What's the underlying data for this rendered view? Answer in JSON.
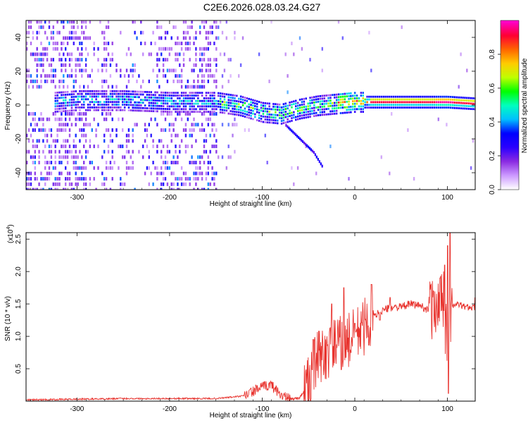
{
  "title": "C2E6.2026.028.03.24.G27",
  "colors": {
    "snr_line": "#e8322d",
    "background": "#ffffff",
    "axis": "#000000"
  },
  "chart_data": [
    {
      "type": "heatmap",
      "xlabel": "Height of straight line (km)",
      "ylabel": "Frequency (Hz)",
      "xlim": [
        -355,
        130
      ],
      "ylim": [
        -50,
        50
      ],
      "x_ticks": [
        "-300",
        "-200",
        "-100",
        "0",
        "100"
      ],
      "y_ticks": [
        "-40",
        "-20",
        "0",
        "20",
        "40"
      ],
      "colorbar": {
        "label": "Normalized spectral amplitude",
        "range": [
          0,
          1
        ],
        "ticks": [
          "0.0",
          "0.2",
          "0.4",
          "0.6",
          "0.8"
        ],
        "colormap": [
          "#ffffff",
          "#cc99ff",
          "#8a2be2",
          "#2b00ff",
          "#0000ff",
          "#00bfff",
          "#00ffbf",
          "#00ff00",
          "#bfff00",
          "#ffcc00",
          "#ff6600",
          "#ff0033",
          "#ff00cc"
        ]
      },
      "main_trace": [
        {
          "x": -325,
          "y": 2
        },
        {
          "x": -300,
          "y": 3
        },
        {
          "x": -250,
          "y": 3
        },
        {
          "x": -200,
          "y": 2
        },
        {
          "x": -150,
          "y": 2
        },
        {
          "x": -125,
          "y": 0
        },
        {
          "x": -100,
          "y": -4
        },
        {
          "x": -80,
          "y": -5
        },
        {
          "x": -60,
          "y": -2
        },
        {
          "x": -40,
          "y": 0
        },
        {
          "x": -20,
          "y": 1
        },
        {
          "x": 0,
          "y": 2
        },
        {
          "x": 50,
          "y": 2
        },
        {
          "x": 100,
          "y": 2
        },
        {
          "x": 130,
          "y": 1
        }
      ],
      "secondary_trace": [
        {
          "x": -75,
          "y": -12
        },
        {
          "x": -60,
          "y": -20
        },
        {
          "x": -45,
          "y": -28
        },
        {
          "x": -35,
          "y": -37
        }
      ]
    },
    {
      "type": "line",
      "xlabel": "Height of straight line (km)",
      "ylabel": "SNR (10 * v/v)",
      "scale_label_base": "(x10",
      "scale_label_exp": "4",
      "scale_label_end": ")",
      "xlim": [
        -355,
        130
      ],
      "ylim": [
        0,
        2.6
      ],
      "x_ticks": [
        "-300",
        "-200",
        "-100",
        "0",
        "100"
      ],
      "y_ticks": [
        "0.5",
        "1.0",
        "1.5",
        "2.0",
        "2.5"
      ],
      "series": [
        {
          "x": [
            -355,
            -300,
            -250,
            -200,
            -150,
            -120,
            -100,
            -90,
            -80,
            -70,
            -60,
            -50,
            -45,
            -40,
            -30,
            -20,
            -10,
            -5,
            0,
            10,
            20,
            30,
            40,
            50,
            60,
            70,
            80,
            90,
            95,
            100,
            105,
            110,
            120,
            130
          ],
          "values": [
            0.02,
            0.03,
            0.04,
            0.04,
            0.04,
            0.08,
            0.22,
            0.25,
            0.1,
            0.03,
            0.05,
            0.25,
            0.5,
            0.65,
            0.75,
            0.85,
            0.9,
            0.95,
            1.0,
            1.15,
            1.3,
            1.4,
            1.45,
            1.45,
            1.5,
            1.48,
            1.4,
            1.5,
            1.6,
            0.9,
            1.45,
            1.5,
            1.45,
            1.45
          ],
          "spikes": [
            [
              -45,
              0.95
            ],
            [
              -25,
              1.5
            ],
            [
              -12,
              1.75
            ],
            [
              0,
              1.2
            ],
            [
              18,
              1.8
            ],
            [
              27,
              1.25
            ],
            [
              38,
              1.6
            ],
            [
              85,
              1.7
            ],
            [
              92,
              1.9
            ],
            [
              97,
              2.1
            ],
            [
              100,
              2.4
            ],
            [
              101,
              0.12
            ],
            [
              103,
              2.6
            ],
            [
              130,
              1.6
            ]
          ]
        }
      ]
    }
  ]
}
